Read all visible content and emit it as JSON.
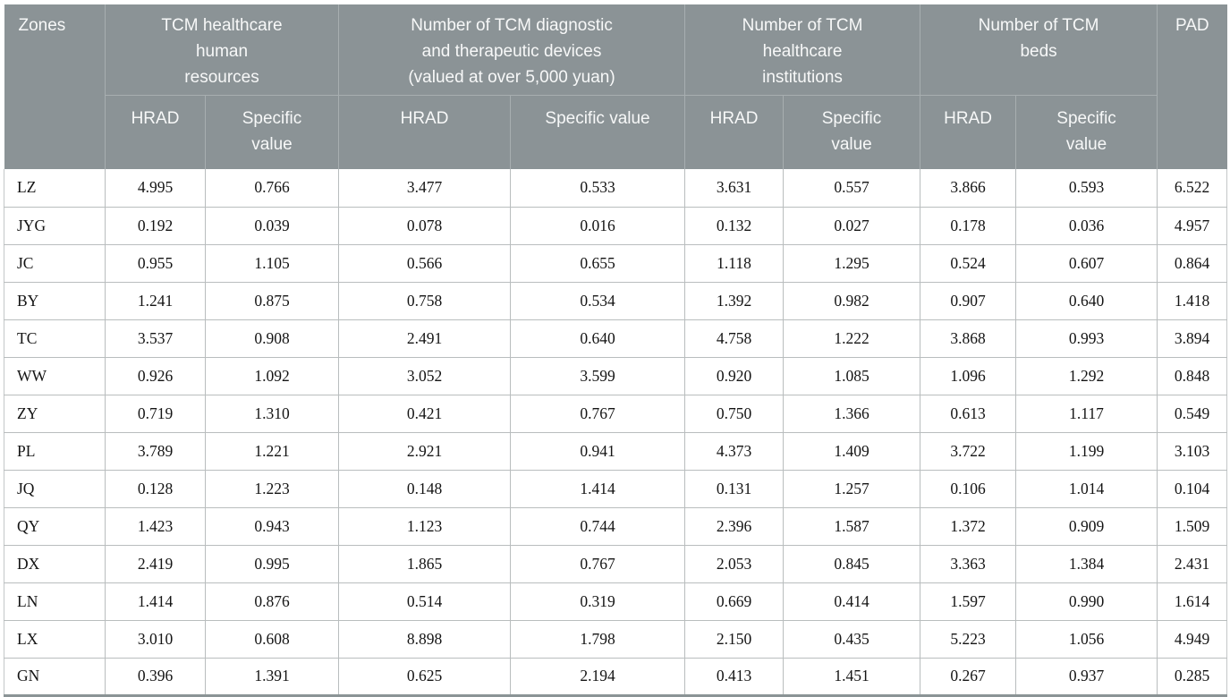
{
  "header": {
    "zones": "Zones",
    "pad": "PAD",
    "groups": [
      {
        "title": [
          "TCM healthcare",
          "human",
          "resources"
        ],
        "hrad": "HRAD",
        "specific": [
          "Specific",
          "value"
        ]
      },
      {
        "title": [
          "Number of TCM diagnostic",
          "and therapeutic devices",
          "(valued at over 5,000 yuan)"
        ],
        "hrad": "HRAD",
        "specific": [
          "Specific value"
        ]
      },
      {
        "title": [
          "Number of TCM",
          "healthcare",
          "institutions"
        ],
        "hrad": "HRAD",
        "specific": [
          "Specific",
          "value"
        ]
      },
      {
        "title": [
          "Number of TCM",
          "beds"
        ],
        "hrad": "HRAD",
        "specific": [
          "Specific",
          "value"
        ]
      }
    ]
  },
  "rows": [
    {
      "zone": "LZ",
      "values": [
        "4.995",
        "0.766",
        "3.477",
        "0.533",
        "3.631",
        "0.557",
        "3.866",
        "0.593",
        "6.522"
      ]
    },
    {
      "zone": "JYG",
      "values": [
        "0.192",
        "0.039",
        "0.078",
        "0.016",
        "0.132",
        "0.027",
        "0.178",
        "0.036",
        "4.957"
      ]
    },
    {
      "zone": "JC",
      "values": [
        "0.955",
        "1.105",
        "0.566",
        "0.655",
        "1.118",
        "1.295",
        "0.524",
        "0.607",
        "0.864"
      ]
    },
    {
      "zone": "BY",
      "values": [
        "1.241",
        "0.875",
        "0.758",
        "0.534",
        "1.392",
        "0.982",
        "0.907",
        "0.640",
        "1.418"
      ]
    },
    {
      "zone": "TC",
      "values": [
        "3.537",
        "0.908",
        "2.491",
        "0.640",
        "4.758",
        "1.222",
        "3.868",
        "0.993",
        "3.894"
      ]
    },
    {
      "zone": "WW",
      "values": [
        "0.926",
        "1.092",
        "3.052",
        "3.599",
        "0.920",
        "1.085",
        "1.096",
        "1.292",
        "0.848"
      ]
    },
    {
      "zone": "ZY",
      "values": [
        "0.719",
        "1.310",
        "0.421",
        "0.767",
        "0.750",
        "1.366",
        "0.613",
        "1.117",
        "0.549"
      ]
    },
    {
      "zone": "PL",
      "values": [
        "3.789",
        "1.221",
        "2.921",
        "0.941",
        "4.373",
        "1.409",
        "3.722",
        "1.199",
        "3.103"
      ]
    },
    {
      "zone": "JQ",
      "values": [
        "0.128",
        "1.223",
        "0.148",
        "1.414",
        "0.131",
        "1.257",
        "0.106",
        "1.014",
        "0.104"
      ]
    },
    {
      "zone": "QY",
      "values": [
        "1.423",
        "0.943",
        "1.123",
        "0.744",
        "2.396",
        "1.587",
        "1.372",
        "0.909",
        "1.509"
      ]
    },
    {
      "zone": "DX",
      "values": [
        "2.419",
        "0.995",
        "1.865",
        "0.767",
        "2.053",
        "0.845",
        "3.363",
        "1.384",
        "2.431"
      ]
    },
    {
      "zone": "LN",
      "values": [
        "1.414",
        "0.876",
        "0.514",
        "0.319",
        "0.669",
        "0.414",
        "1.597",
        "0.990",
        "1.614"
      ]
    },
    {
      "zone": "LX",
      "values": [
        "3.010",
        "0.608",
        "8.898",
        "1.798",
        "2.150",
        "0.435",
        "5.223",
        "1.056",
        "4.949"
      ]
    },
    {
      "zone": "GN",
      "values": [
        "0.396",
        "1.391",
        "0.625",
        "2.194",
        "0.413",
        "1.451",
        "0.267",
        "0.937",
        "0.285"
      ]
    }
  ],
  "colors": {
    "header_bg": "#8b9396",
    "header_text": "#f7f8f8",
    "header_divider": "#a7aeb0",
    "body_border": "#b9bdbe",
    "bottom_border": "#8b9496"
  }
}
